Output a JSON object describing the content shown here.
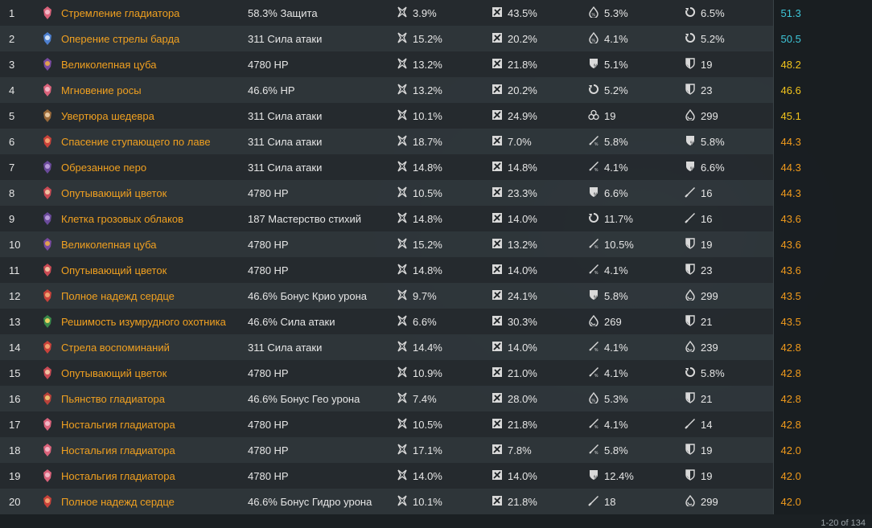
{
  "colors": {
    "name": "#f0a020",
    "cyan": "#3ec6d8",
    "yellow": "#f2c41c",
    "orange": "#f09a1c"
  },
  "rows": [
    {
      "n": "1",
      "art": "flower-pink",
      "name": "Стремление гладиатора",
      "main": "58.3% Защита",
      "s": [
        [
          "crit-rate",
          "3.9%"
        ],
        [
          "crit-dmg",
          "43.5%"
        ],
        [
          "energy-recharge",
          "5.3%"
        ],
        [
          "recharge",
          "6.5%"
        ]
      ],
      "score": "51.3",
      "tier": "cyan"
    },
    {
      "n": "2",
      "art": "feather-blue",
      "name": "Оперение стрелы барда",
      "main": "311 Сила атаки",
      "s": [
        [
          "crit-rate",
          "15.2%"
        ],
        [
          "crit-dmg",
          "20.2%"
        ],
        [
          "energy-recharge",
          "4.1%"
        ],
        [
          "recharge",
          "5.2%"
        ]
      ],
      "score": "50.5",
      "tier": "cyan"
    },
    {
      "n": "3",
      "art": "goblet-purple",
      "name": "Великолепная цуба",
      "main": "4780 HP",
      "s": [
        [
          "def-percent",
          "5.1%"
        ],
        [
          "hp-shield",
          "19"
        ]
      ],
      "pre": [
        [
          "crit-rate",
          "13.2%"
        ],
        [
          "crit-dmg",
          "21.8%"
        ]
      ],
      "score": "48.2",
      "tier": "yellow"
    },
    {
      "n": "4",
      "art": "flower-pink",
      "name": "Мгновение росы",
      "main": "46.6% HP",
      "pre": [
        [
          "crit-rate",
          "13.2%"
        ],
        [
          "crit-dmg",
          "20.2%"
        ]
      ],
      "s": [
        [
          "recharge",
          "5.2%"
        ],
        [
          "hp-shield",
          "23"
        ]
      ],
      "score": "46.6",
      "tier": "yellow"
    },
    {
      "n": "5",
      "art": "quill-brown",
      "name": "Увертюра шедевра",
      "main": "311 Сила атаки",
      "pre": [
        [
          "crit-rate",
          "10.1%"
        ],
        [
          "crit-dmg",
          "24.9%"
        ]
      ],
      "s": [
        [
          "elemental-mastery",
          "19"
        ],
        [
          "hp-drop",
          "299"
        ]
      ],
      "score": "45.1",
      "tier": "yellow"
    },
    {
      "n": "6",
      "art": "feather-red",
      "name": "Спасение ступающего по лаве",
      "main": "311 Сила атаки",
      "pre": [
        [
          "crit-rate",
          "18.7%"
        ],
        [
          "crit-dmg",
          "7.0%"
        ]
      ],
      "s": [
        [
          "atk-percent",
          "5.8%"
        ],
        [
          "def-percent",
          "5.8%"
        ]
      ],
      "score": "44.3",
      "tier": "orange"
    },
    {
      "n": "7",
      "art": "feather-purple",
      "name": "Обрезанное перо",
      "main": "311 Сила атаки",
      "pre": [
        [
          "crit-rate",
          "14.8%"
        ],
        [
          "crit-dmg",
          "14.8%"
        ]
      ],
      "s": [
        [
          "atk-percent",
          "4.1%"
        ],
        [
          "def-percent",
          "6.6%"
        ]
      ],
      "score": "44.3",
      "tier": "orange"
    },
    {
      "n": "8",
      "art": "flower-red",
      "name": "Опутывающий цветок",
      "main": "4780 HP",
      "pre": [
        [
          "crit-rate",
          "10.5%"
        ],
        [
          "crit-dmg",
          "23.3%"
        ]
      ],
      "s": [
        [
          "def-percent",
          "6.6%"
        ],
        [
          "atk-flat",
          "16"
        ]
      ],
      "score": "44.3",
      "tier": "orange"
    },
    {
      "n": "9",
      "art": "feather-purple",
      "name": "Клетка грозовых облаков",
      "main": "187 Мастерство стихий",
      "pre": [
        [
          "crit-rate",
          "14.8%"
        ],
        [
          "crit-dmg",
          "14.0%"
        ]
      ],
      "s": [
        [
          "recharge",
          "11.7%"
        ],
        [
          "atk-flat",
          "16"
        ]
      ],
      "score": "43.6",
      "tier": "orange"
    },
    {
      "n": "10",
      "art": "goblet-purple",
      "name": "Великолепная цуба",
      "main": "4780 HP",
      "pre": [
        [
          "crit-rate",
          "15.2%"
        ],
        [
          "crit-dmg",
          "13.2%"
        ]
      ],
      "s": [
        [
          "atk-percent",
          "10.5%"
        ],
        [
          "hp-shield",
          "19"
        ]
      ],
      "score": "43.6",
      "tier": "orange"
    },
    {
      "n": "11",
      "art": "flower-red",
      "name": "Опутывающий цветок",
      "main": "4780 HP",
      "pre": [
        [
          "crit-rate",
          "14.8%"
        ],
        [
          "crit-dmg",
          "14.0%"
        ]
      ],
      "s": [
        [
          "atk-percent",
          "4.1%"
        ],
        [
          "hp-shield",
          "23"
        ]
      ],
      "score": "43.6",
      "tier": "orange"
    },
    {
      "n": "12",
      "art": "feather-red",
      "name": "Полное надежд сердце",
      "main": "46.6% Бонус Крио урона",
      "pre": [
        [
          "crit-rate",
          "9.7%"
        ],
        [
          "crit-dmg",
          "24.1%"
        ]
      ],
      "s": [
        [
          "def-percent",
          "5.8%"
        ],
        [
          "hp-drop",
          "299"
        ]
      ],
      "score": "43.5",
      "tier": "orange"
    },
    {
      "n": "13",
      "art": "badge-green",
      "name": "Решимость изумрудного охотника",
      "main": "46.6% Сила атаки",
      "pre": [
        [
          "crit-rate",
          "6.6%"
        ],
        [
          "crit-dmg",
          "30.3%"
        ]
      ],
      "s": [
        [
          "hp-drop",
          "269"
        ],
        [
          "hp-shield",
          "21"
        ]
      ],
      "score": "43.5",
      "tier": "orange"
    },
    {
      "n": "14",
      "art": "feather-red",
      "name": "Стрела воспоминаний",
      "main": "311 Сила атаки",
      "pre": [
        [
          "crit-rate",
          "14.4%"
        ],
        [
          "crit-dmg",
          "14.0%"
        ]
      ],
      "s": [
        [
          "atk-percent",
          "4.1%"
        ],
        [
          "hp-drop",
          "239"
        ]
      ],
      "score": "42.8",
      "tier": "orange"
    },
    {
      "n": "15",
      "art": "flower-red",
      "name": "Опутывающий цветок",
      "main": "4780 HP",
      "pre": [
        [
          "crit-rate",
          "10.9%"
        ],
        [
          "crit-dmg",
          "21.0%"
        ]
      ],
      "s": [
        [
          "atk-percent",
          "4.1%"
        ],
        [
          "recharge",
          "5.8%"
        ]
      ],
      "score": "42.8",
      "tier": "orange"
    },
    {
      "n": "16",
      "art": "goblet-red",
      "name": "Пьянство гладиатора",
      "main": "46.6% Бонус Гео урона",
      "pre": [
        [
          "crit-rate",
          "7.4%"
        ],
        [
          "crit-dmg",
          "28.0%"
        ]
      ],
      "s": [
        [
          "energy-recharge",
          "5.3%"
        ],
        [
          "hp-shield",
          "21"
        ]
      ],
      "score": "42.8",
      "tier": "orange"
    },
    {
      "n": "17",
      "art": "flower-pink",
      "name": "Ностальгия гладиатора",
      "main": "4780 HP",
      "pre": [
        [
          "crit-rate",
          "10.5%"
        ],
        [
          "crit-dmg",
          "21.8%"
        ]
      ],
      "s": [
        [
          "atk-percent",
          "4.1%"
        ],
        [
          "atk-flat",
          "14"
        ]
      ],
      "score": "42.8",
      "tier": "orange"
    },
    {
      "n": "18",
      "art": "flower-pink",
      "name": "Ностальгия гладиатора",
      "main": "4780 HP",
      "pre": [
        [
          "crit-rate",
          "17.1%"
        ],
        [
          "crit-dmg",
          "7.8%"
        ]
      ],
      "s": [
        [
          "atk-percent",
          "5.8%"
        ],
        [
          "hp-shield",
          "19"
        ]
      ],
      "score": "42.0",
      "tier": "orange"
    },
    {
      "n": "19",
      "art": "flower-pink",
      "name": "Ностальгия гладиатора",
      "main": "4780 HP",
      "pre": [
        [
          "crit-rate",
          "14.0%"
        ],
        [
          "crit-dmg",
          "14.0%"
        ]
      ],
      "s": [
        [
          "def-percent",
          "12.4%"
        ],
        [
          "hp-shield",
          "19"
        ]
      ],
      "score": "42.0",
      "tier": "orange"
    },
    {
      "n": "20",
      "art": "feather-red",
      "name": "Полное надежд сердце",
      "main": "46.6% Бонус Гидро урона",
      "pre": [
        [
          "crit-rate",
          "10.1%"
        ],
        [
          "crit-dmg",
          "21.8%"
        ]
      ],
      "s": [
        [
          "atk-flat",
          "18"
        ],
        [
          "hp-drop",
          "299"
        ]
      ],
      "score": "42.0",
      "tier": "orange"
    }
  ],
  "footer": "1-20 of 134"
}
